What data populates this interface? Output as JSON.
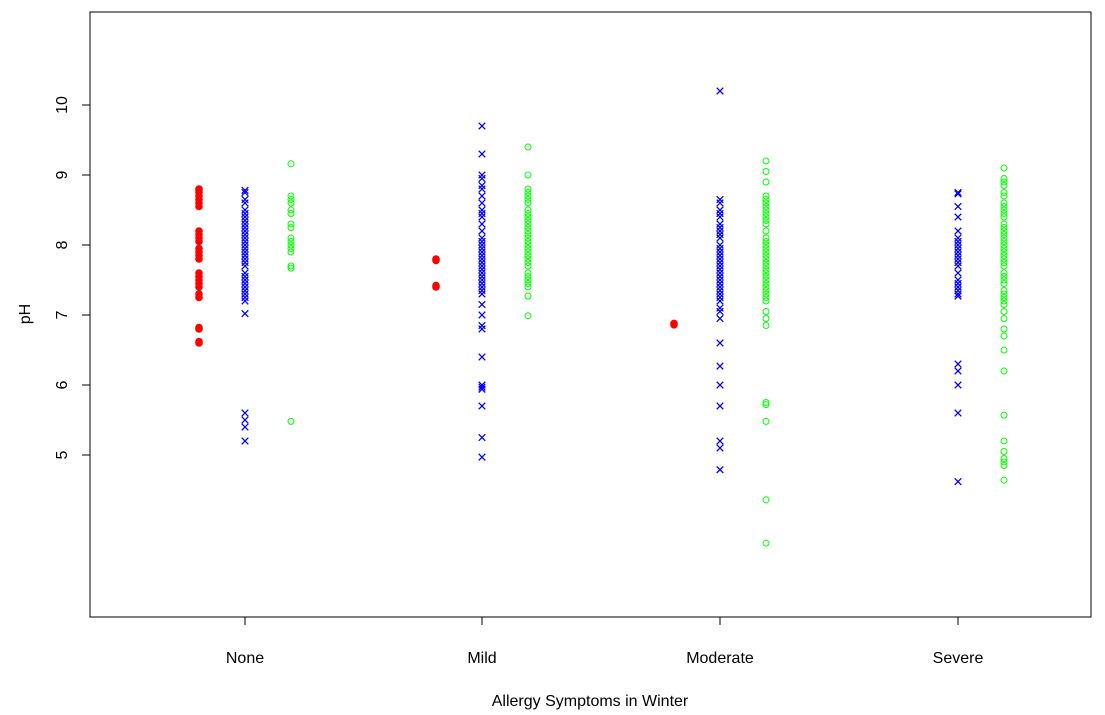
{
  "chart_data": {
    "type": "scatter",
    "title": "",
    "xlabel": "Allergy Symptoms in Winter",
    "ylabel": "pH",
    "categories": [
      "None",
      "Mild",
      "Moderate",
      "Severe"
    ],
    "yticks": [
      5,
      6,
      7,
      8,
      9,
      10
    ],
    "ylim": [
      2.7,
      11.4
    ],
    "grid": false,
    "legend": "none",
    "series": [
      {
        "marker": "filled-circle",
        "color": "#ff0000",
        "values": [
          [
            8.8,
            8.78,
            8.75,
            8.7,
            8.65,
            8.6,
            8.55,
            8.2,
            8.15,
            8.1,
            8.05,
            7.95,
            7.9,
            7.85,
            7.8,
            7.6,
            7.55,
            7.5,
            7.45,
            7.4,
            7.3,
            7.25,
            6.82,
            6.8,
            6.62,
            6.6
          ],
          [
            7.8,
            7.78,
            7.42,
            7.4
          ],
          [
            6.88,
            6.86
          ],
          []
        ]
      },
      {
        "marker": "x",
        "color": "#0000ff",
        "values": [
          [
            8.78,
            8.75,
            8.65,
            8.6,
            8.5,
            8.45,
            8.4,
            8.35,
            8.3,
            8.25,
            8.2,
            8.15,
            8.1,
            8.05,
            8.0,
            7.95,
            7.9,
            7.85,
            7.8,
            7.75,
            7.7,
            7.6,
            7.55,
            7.5,
            7.45,
            7.4,
            7.35,
            7.3,
            7.25,
            7.2,
            7.02,
            5.6,
            5.5,
            5.4,
            5.2
          ],
          [
            9.7,
            9.3,
            9.0,
            8.95,
            8.85,
            8.8,
            8.7,
            8.6,
            8.5,
            8.45,
            8.4,
            8.3,
            8.2,
            8.1,
            8.05,
            8.0,
            7.95,
            7.9,
            7.85,
            7.8,
            7.75,
            7.7,
            7.65,
            7.6,
            7.55,
            7.5,
            7.45,
            7.4,
            7.35,
            7.3,
            7.15,
            7.0,
            6.85,
            6.8,
            6.4,
            6.0,
            5.97,
            5.94,
            5.7,
            5.25,
            4.97
          ],
          [
            10.2,
            8.65,
            8.6,
            8.5,
            8.45,
            8.4,
            8.3,
            8.25,
            8.2,
            8.15,
            8.1,
            8.0,
            7.95,
            7.9,
            7.85,
            7.8,
            7.75,
            7.7,
            7.65,
            7.6,
            7.55,
            7.5,
            7.45,
            7.4,
            7.35,
            7.3,
            7.25,
            7.2,
            7.1,
            7.05,
            6.95,
            6.6,
            6.27,
            6.0,
            5.7,
            5.2,
            5.1,
            4.79
          ],
          [
            8.75,
            8.73,
            8.55,
            8.4,
            8.2,
            8.1,
            8.05,
            8.0,
            7.95,
            7.9,
            7.85,
            7.8,
            7.75,
            7.7,
            7.6,
            7.5,
            7.45,
            7.4,
            7.35,
            7.3,
            7.27,
            6.3,
            6.2,
            6.0,
            5.6,
            4.62
          ]
        ]
      },
      {
        "marker": "open-circle",
        "color": "#00ff00",
        "values": [
          [
            9.16,
            8.7,
            8.65,
            8.6,
            8.5,
            8.45,
            8.3,
            8.25,
            8.1,
            8.05,
            8.0,
            7.95,
            7.9,
            7.7,
            7.67,
            5.48
          ],
          [
            9.4,
            9.0,
            8.8,
            8.75,
            8.7,
            8.65,
            8.6,
            8.5,
            8.45,
            8.4,
            8.35,
            8.3,
            8.25,
            8.2,
            8.15,
            8.1,
            8.05,
            8.0,
            7.95,
            7.9,
            7.85,
            7.8,
            7.75,
            7.7,
            7.6,
            7.55,
            7.5,
            7.45,
            7.4,
            7.27,
            6.99
          ],
          [
            9.2,
            9.05,
            8.9,
            8.7,
            8.65,
            8.6,
            8.55,
            8.5,
            8.45,
            8.4,
            8.35,
            8.3,
            8.2,
            8.1,
            8.05,
            8.0,
            7.95,
            7.9,
            7.85,
            7.8,
            7.75,
            7.7,
            7.65,
            7.6,
            7.55,
            7.5,
            7.45,
            7.4,
            7.35,
            7.3,
            7.25,
            7.2,
            7.05,
            6.95,
            6.85,
            5.75,
            5.72,
            5.48,
            4.36,
            3.74
          ],
          [
            9.1,
            8.95,
            8.9,
            8.85,
            8.75,
            8.7,
            8.6,
            8.55,
            8.5,
            8.45,
            8.4,
            8.3,
            8.25,
            8.2,
            8.15,
            8.1,
            8.05,
            8.0,
            7.95,
            7.9,
            7.85,
            7.8,
            7.75,
            7.7,
            7.6,
            7.55,
            7.5,
            7.45,
            7.35,
            7.3,
            7.25,
            7.2,
            7.15,
            7.05,
            6.95,
            6.8,
            6.7,
            6.5,
            6.2,
            5.57,
            5.2,
            5.05,
            4.95,
            4.9,
            4.85,
            4.64
          ]
        ]
      }
    ]
  }
}
